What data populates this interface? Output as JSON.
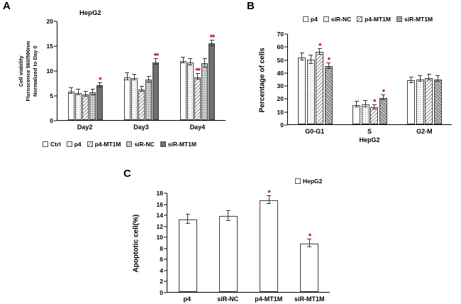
{
  "figure": {
    "panels": {
      "A": {
        "label": "A"
      },
      "B": {
        "label": "B"
      },
      "C": {
        "label": "C"
      }
    },
    "colors": {
      "significance": "#c00000",
      "axis": "#000000",
      "bar_dark": "#6e6e6e"
    }
  },
  "chart_data": [
    {
      "type": "bar",
      "title": "HepG2",
      "ylabel": "Cell viability\nFluroscence 560/590nm\nNormalized to Day 0",
      "xlabel": "",
      "ylim": [
        0,
        20
      ],
      "yticks": [
        0,
        5,
        10,
        15,
        20
      ],
      "legend_position": "bottom",
      "grid": false,
      "categories": [
        "Day2",
        "Day3",
        "Day4"
      ],
      "series": [
        {
          "name": "Ctrl",
          "fill": "white",
          "values": [
            5.8,
            8.7,
            12.0
          ],
          "errors": [
            0.5,
            0.6,
            0.5
          ],
          "sig": [
            "",
            "",
            ""
          ]
        },
        {
          "name": "p4",
          "fill": "dots",
          "values": [
            5.5,
            8.5,
            11.7
          ],
          "errors": [
            0.5,
            0.5,
            0.6
          ],
          "sig": [
            "",
            "",
            ""
          ]
        },
        {
          "name": "p4-MT1M",
          "fill": "diag",
          "values": [
            5.2,
            6.2,
            8.7
          ],
          "errors": [
            0.4,
            0.4,
            0.5
          ],
          "sig": [
            "",
            "",
            "**"
          ]
        },
        {
          "name": "siR-NC",
          "fill": "densedots",
          "values": [
            5.6,
            8.2,
            11.5
          ],
          "errors": [
            0.5,
            0.5,
            0.8
          ],
          "sig": [
            "",
            "",
            ""
          ]
        },
        {
          "name": "siR-MT1M",
          "fill": "dark",
          "values": [
            7.0,
            11.7,
            15.5
          ],
          "errors": [
            0.4,
            0.5,
            0.5
          ],
          "sig": [
            "*",
            "**",
            "**"
          ]
        }
      ]
    },
    {
      "type": "bar",
      "title": "",
      "ylabel": "Percentage of cells",
      "xlabel": "HepG2",
      "ylim": [
        0,
        70
      ],
      "yticks": [
        0,
        10,
        20,
        30,
        40,
        50,
        60,
        70
      ],
      "legend_position": "top",
      "grid": false,
      "categories": [
        "G0-G1",
        "S",
        "G2-M"
      ],
      "series": [
        {
          "name": "p4",
          "fill": "white",
          "values": [
            52,
            15,
            34
          ],
          "errors": [
            2.5,
            2,
            2
          ],
          "sig": [
            "",
            "",
            ""
          ]
        },
        {
          "name": "siR-NC",
          "fill": "dots",
          "values": [
            50,
            15.5,
            35
          ],
          "errors": [
            3,
            2,
            2
          ],
          "sig": [
            "",
            "",
            ""
          ]
        },
        {
          "name": "p4-MT1M",
          "fill": "diag",
          "values": [
            56,
            13,
            36
          ],
          "errors": [
            2,
            1.5,
            2
          ],
          "sig": [
            "*",
            "*",
            ""
          ]
        },
        {
          "name": "siR-MT1M",
          "fill": "graydiag",
          "values": [
            45,
            20.5,
            35
          ],
          "errors": [
            2,
            1.5,
            2
          ],
          "sig": [
            "*",
            "*",
            ""
          ]
        }
      ]
    },
    {
      "type": "bar",
      "title": "",
      "ylabel": "Apoptotic cell(%)",
      "xlabel": "",
      "ylim": [
        0,
        18
      ],
      "yticks": [
        0,
        2,
        4,
        6,
        8,
        10,
        12,
        14,
        16,
        18
      ],
      "legend_position": "top-right",
      "grid": false,
      "categories": [
        "p4",
        "siR-NC",
        "p4-MT1M",
        "siR-MT1M"
      ],
      "series": [
        {
          "name": "HepG2",
          "fill": "white",
          "values": [
            13.2,
            13.8,
            16.7,
            8.8
          ],
          "errors": [
            0.8,
            0.9,
            0.7,
            0.6
          ],
          "sig": [
            "",
            "",
            "*",
            "*"
          ]
        }
      ]
    }
  ]
}
